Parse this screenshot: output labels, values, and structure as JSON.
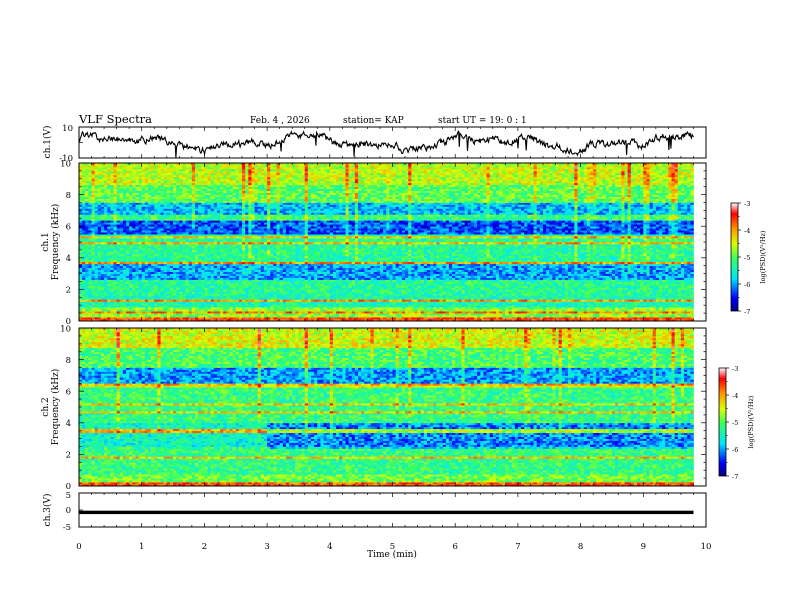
{
  "header": {
    "title": "VLF Spectra",
    "date": "Feb. 4 , 2026",
    "station": "station= KAP",
    "start": "start UT =  19: 0  : 1"
  },
  "chart_data": [
    {
      "type": "line",
      "name": "ch1-waveform",
      "ylabel": "ch.1(V)",
      "ylim": [
        -10,
        10
      ],
      "yticks": [
        "10",
        "-10"
      ],
      "xlim": [
        0,
        10
      ]
    },
    {
      "type": "heatmap",
      "name": "ch1-spectrogram",
      "ylabel": "ch.1\nFrequency (kHz)",
      "ylabel_lines": [
        "ch.1",
        "Frequency (kHz)"
      ],
      "ylim": [
        0,
        10
      ],
      "yticks": [
        "0",
        "2",
        "4",
        "6",
        "8",
        "10"
      ],
      "xlim": [
        0,
        10
      ],
      "data_extent_min": 9.8,
      "band_notes": "blue (low power) bands near 2.8-3.6, 5.5-6.4 and 6.8-7.5 kHz; orange horizontal lines near 1.3, 2.0, 2.5, 3.7, 4.9, 5.3, 6.5 kHz",
      "colorbar": {
        "label": "log(PSD)(V²/Hz)",
        "range": [
          -7,
          -3
        ],
        "ticks": [
          "-3",
          "-4",
          "-5",
          "-6",
          "-7"
        ]
      }
    },
    {
      "type": "heatmap",
      "name": "ch2-spectrogram",
      "ylabel": "ch.2\nFrequency (kHz)",
      "ylabel_lines": [
        "ch.2",
        "Frequency (kHz)"
      ],
      "ylim": [
        0,
        10
      ],
      "yticks": [
        "0",
        "2",
        "4",
        "6",
        "8",
        "10"
      ],
      "xlim": [
        0,
        10
      ],
      "data_extent_min": 9.8,
      "band_notes": "blue bands near 2.5-4.0 kHz (stronger after 3 min) and 6.5-7.5 kHz; orange lines near 1.8, 3.5, 4.7, 5.2, 6.4 kHz",
      "colorbar": {
        "label": "log(PSD)(V²/Hz)",
        "range": [
          -7,
          -3
        ],
        "ticks": [
          "-3",
          "-4",
          "-5",
          "-6",
          "-7"
        ]
      }
    },
    {
      "type": "line",
      "name": "ch3-waveform",
      "ylabel": "ch.3(V)",
      "ylim": [
        -5,
        5
      ],
      "yticks": [
        "5",
        "0",
        "-5"
      ],
      "xlim": [
        0,
        10
      ],
      "xticks": [
        "0",
        "1",
        "2",
        "3",
        "4",
        "5",
        "6",
        "7",
        "8",
        "9",
        "10"
      ],
      "xlabel": "Time (min)",
      "level_band": [
        -1.2,
        -0.2
      ]
    }
  ],
  "colors": {
    "axis": "#000000",
    "trace": "#000000",
    "spectrum_background": "#6fdc6f"
  }
}
